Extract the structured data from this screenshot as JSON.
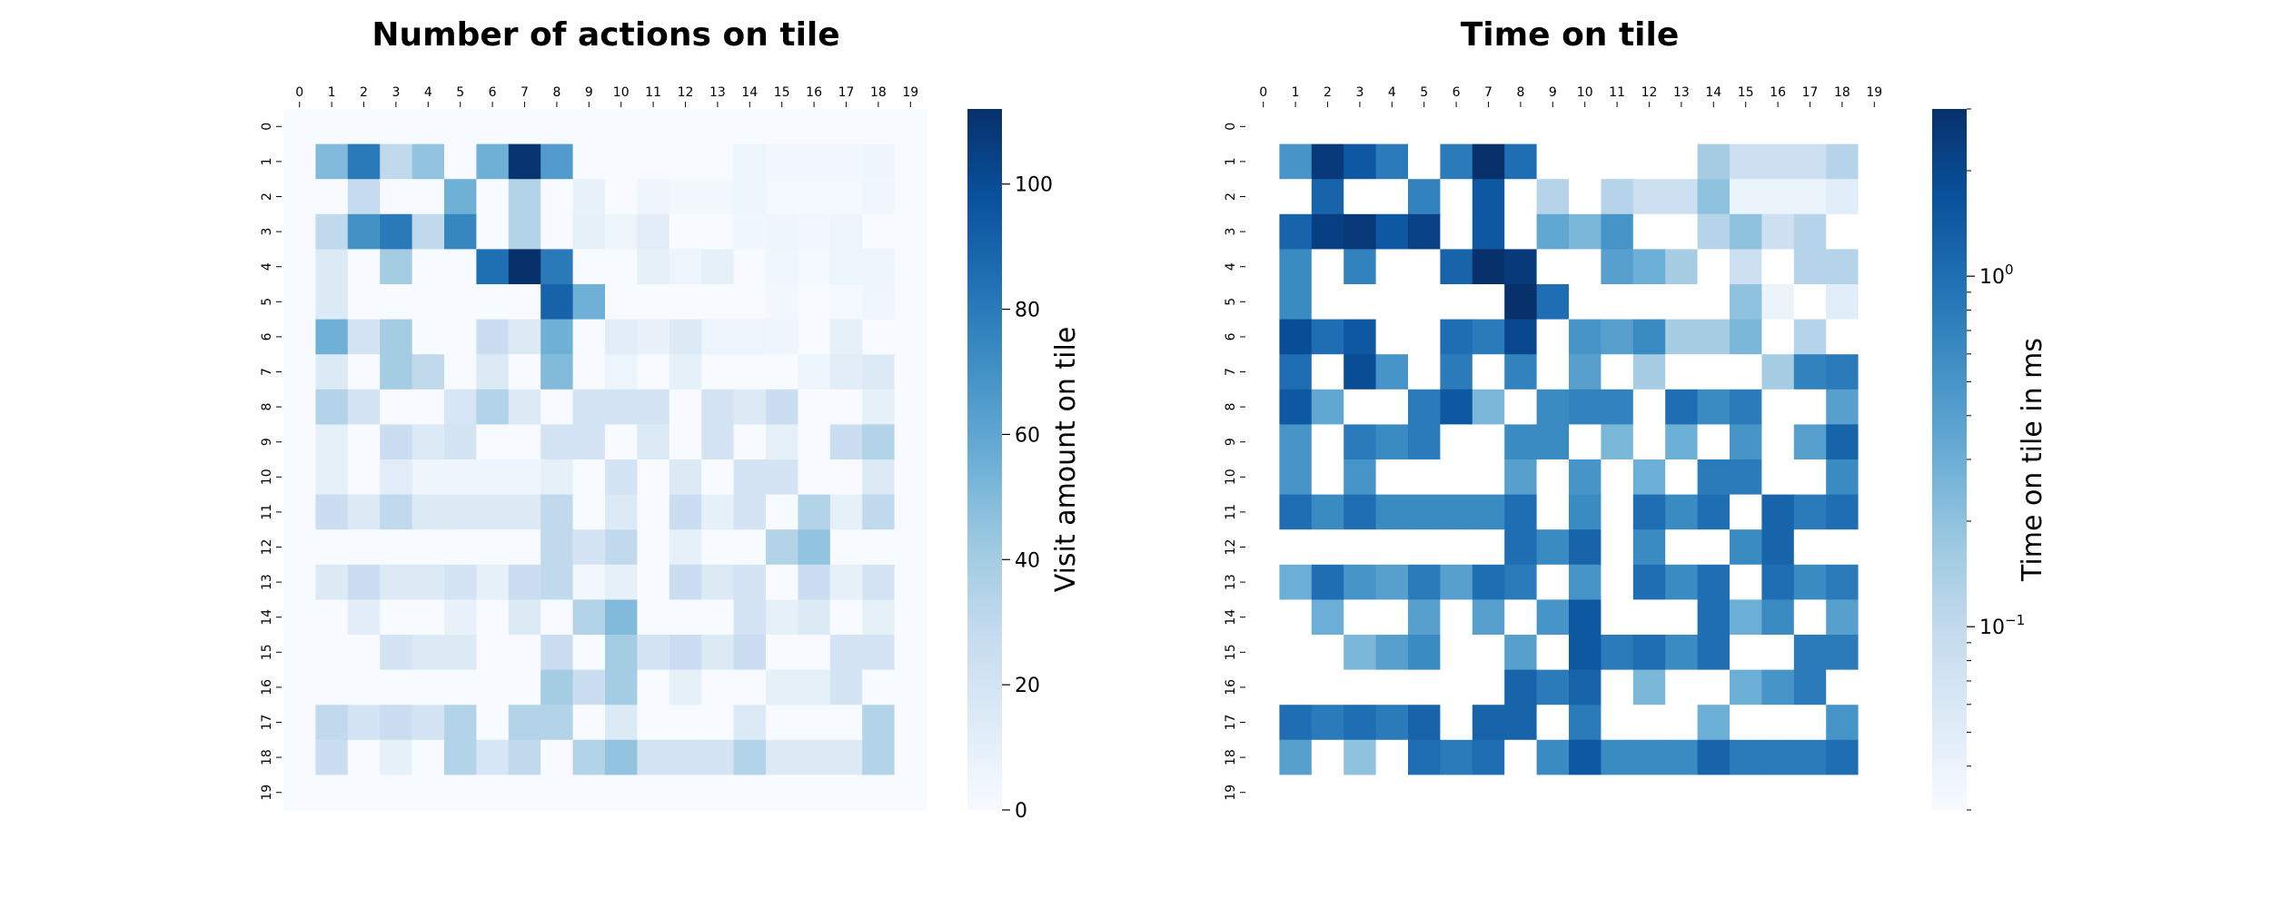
{
  "chart_data": [
    {
      "type": "heatmap",
      "title": "Number of actions on tile",
      "x_ticks": [
        "0",
        "1",
        "2",
        "3",
        "4",
        "5",
        "6",
        "7",
        "8",
        "9",
        "10",
        "11",
        "12",
        "13",
        "14",
        "15",
        "16",
        "17",
        "18",
        "19"
      ],
      "y_ticks": [
        "0",
        "1",
        "2",
        "3",
        "4",
        "5",
        "6",
        "7",
        "8",
        "9",
        "10",
        "11",
        "12",
        "13",
        "14",
        "15",
        "16",
        "17",
        "18",
        "19"
      ],
      "colorbar_label": "Visit amount on tile",
      "colorbar_scale": "linear",
      "colorbar_range": [
        0,
        112
      ],
      "colorbar_ticks": [
        "0",
        "20",
        "40",
        "60",
        "80",
        "100"
      ],
      "colorbar_tick_values": [
        0,
        20,
        40,
        60,
        80,
        100
      ],
      "colormap": "Blues",
      "values": [
        [
          0,
          0,
          0,
          0,
          0,
          0,
          0,
          0,
          0,
          0,
          0,
          0,
          0,
          0,
          0,
          0,
          0,
          0,
          0,
          0
        ],
        [
          0,
          50,
          80,
          30,
          45,
          0,
          55,
          110,
          65,
          0,
          0,
          0,
          0,
          0,
          6,
          3,
          3,
          3,
          5,
          0
        ],
        [
          0,
          0,
          28,
          0,
          0,
          55,
          0,
          35,
          0,
          8,
          0,
          5,
          3,
          3,
          6,
          2,
          2,
          2,
          4,
          0
        ],
        [
          0,
          30,
          70,
          80,
          30,
          75,
          0,
          35,
          0,
          10,
          6,
          12,
          0,
          0,
          4,
          5,
          3,
          6,
          0,
          0
        ],
        [
          0,
          15,
          0,
          40,
          0,
          0,
          85,
          112,
          80,
          0,
          0,
          10,
          6,
          10,
          0,
          4,
          2,
          6,
          6,
          0
        ],
        [
          0,
          15,
          0,
          0,
          0,
          0,
          0,
          0,
          90,
          55,
          0,
          0,
          0,
          0,
          0,
          3,
          0,
          2,
          4,
          0
        ],
        [
          0,
          55,
          20,
          40,
          0,
          0,
          25,
          15,
          55,
          0,
          12,
          8,
          15,
          6,
          6,
          5,
          0,
          10,
          0,
          0
        ],
        [
          0,
          15,
          0,
          40,
          30,
          0,
          15,
          0,
          50,
          0,
          6,
          0,
          10,
          0,
          0,
          0,
          6,
          12,
          15,
          0
        ],
        [
          0,
          35,
          20,
          0,
          0,
          18,
          35,
          15,
          0,
          20,
          20,
          20,
          0,
          20,
          15,
          25,
          0,
          0,
          10,
          0
        ],
        [
          0,
          10,
          0,
          25,
          15,
          20,
          0,
          0,
          20,
          20,
          0,
          15,
          0,
          20,
          0,
          10,
          0,
          25,
          35,
          0
        ],
        [
          0,
          10,
          0,
          12,
          5,
          5,
          5,
          5,
          10,
          0,
          20,
          0,
          15,
          0,
          20,
          20,
          0,
          0,
          15,
          0
        ],
        [
          0,
          25,
          15,
          30,
          15,
          15,
          15,
          15,
          30,
          0,
          15,
          0,
          25,
          10,
          20,
          0,
          35,
          10,
          30,
          0
        ],
        [
          0,
          0,
          0,
          0,
          0,
          0,
          0,
          0,
          30,
          20,
          30,
          0,
          10,
          0,
          0,
          35,
          45,
          0,
          0,
          0
        ],
        [
          0,
          15,
          25,
          15,
          15,
          20,
          10,
          25,
          30,
          3,
          10,
          0,
          25,
          15,
          20,
          0,
          25,
          10,
          20,
          0
        ],
        [
          0,
          0,
          12,
          0,
          0,
          8,
          0,
          15,
          0,
          35,
          50,
          0,
          0,
          0,
          20,
          10,
          15,
          0,
          10,
          0
        ],
        [
          0,
          0,
          0,
          20,
          15,
          15,
          0,
          0,
          25,
          0,
          40,
          20,
          25,
          15,
          25,
          0,
          0,
          20,
          20,
          0
        ],
        [
          0,
          0,
          0,
          0,
          0,
          0,
          0,
          0,
          40,
          25,
          40,
          0,
          10,
          0,
          0,
          10,
          10,
          20,
          0,
          0
        ],
        [
          0,
          30,
          20,
          25,
          20,
          35,
          0,
          35,
          35,
          0,
          15,
          0,
          0,
          0,
          15,
          0,
          0,
          0,
          35,
          0
        ],
        [
          0,
          25,
          0,
          10,
          0,
          35,
          18,
          30,
          0,
          35,
          45,
          20,
          20,
          20,
          35,
          15,
          15,
          15,
          35,
          0
        ],
        [
          0,
          0,
          0,
          0,
          0,
          0,
          0,
          0,
          0,
          0,
          0,
          0,
          0,
          0,
          0,
          0,
          0,
          0,
          0,
          0
        ]
      ]
    },
    {
      "type": "heatmap",
      "title": "Time on tile",
      "x_ticks": [
        "0",
        "1",
        "2",
        "3",
        "4",
        "5",
        "6",
        "7",
        "8",
        "9",
        "10",
        "11",
        "12",
        "13",
        "14",
        "15",
        "16",
        "17",
        "18",
        "19"
      ],
      "y_ticks": [
        "0",
        "1",
        "2",
        "3",
        "4",
        "5",
        "6",
        "7",
        "8",
        "9",
        "10",
        "11",
        "12",
        "13",
        "14",
        "15",
        "16",
        "17",
        "18",
        "19"
      ],
      "colorbar_label": "Time on tile in ms",
      "colorbar_scale": "log",
      "colorbar_range": [
        0.03,
        3
      ],
      "colorbar_ticks": [
        "10^-1",
        "10^0"
      ],
      "colorbar_tick_values": [
        0.1,
        1
      ],
      "colormap": "Blues",
      "missing": "white",
      "values": [
        [
          null,
          null,
          null,
          null,
          null,
          null,
          null,
          null,
          null,
          null,
          null,
          null,
          null,
          null,
          null,
          null,
          null,
          null,
          null,
          null
        ],
        [
          null,
          0.5,
          2.5,
          1.5,
          0.8,
          null,
          0.8,
          3.0,
          1.0,
          null,
          null,
          null,
          null,
          null,
          0.15,
          0.08,
          0.08,
          0.08,
          0.12,
          null
        ],
        [
          null,
          null,
          1.2,
          null,
          null,
          0.7,
          null,
          1.5,
          null,
          0.12,
          null,
          0.12,
          0.08,
          0.08,
          0.2,
          0.04,
          0.04,
          0.04,
          0.05,
          null
        ],
        [
          null,
          1.2,
          2.3,
          2.6,
          1.5,
          2.2,
          null,
          1.5,
          null,
          0.35,
          0.25,
          0.5,
          null,
          null,
          0.12,
          0.2,
          0.08,
          0.12,
          null,
          null
        ],
        [
          null,
          0.6,
          null,
          0.7,
          null,
          null,
          1.2,
          3.0,
          2.5,
          null,
          null,
          0.4,
          0.3,
          0.15,
          null,
          0.08,
          null,
          0.12,
          0.12,
          null
        ],
        [
          null,
          0.6,
          null,
          null,
          null,
          null,
          null,
          null,
          3.0,
          1.0,
          null,
          null,
          null,
          null,
          null,
          0.2,
          0.04,
          null,
          0.05,
          null
        ],
        [
          null,
          1.8,
          1.0,
          1.5,
          null,
          null,
          1.0,
          0.8,
          2.0,
          null,
          0.5,
          0.4,
          0.6,
          0.15,
          0.15,
          0.25,
          null,
          0.12,
          null,
          null
        ],
        [
          null,
          1.0,
          null,
          1.8,
          0.5,
          null,
          0.8,
          null,
          0.7,
          null,
          0.4,
          null,
          0.15,
          null,
          null,
          null,
          0.15,
          0.7,
          0.8,
          null
        ],
        [
          null,
          1.5,
          0.35,
          null,
          null,
          0.8,
          1.5,
          0.25,
          null,
          0.6,
          0.7,
          0.7,
          null,
          1.0,
          0.6,
          0.8,
          null,
          null,
          0.4,
          null
        ],
        [
          null,
          0.5,
          null,
          0.8,
          0.6,
          0.8,
          null,
          null,
          0.6,
          0.6,
          null,
          0.25,
          null,
          0.3,
          null,
          0.5,
          null,
          0.4,
          1.2,
          null
        ],
        [
          null,
          0.5,
          null,
          0.5,
          null,
          null,
          null,
          null,
          0.4,
          null,
          0.5,
          null,
          0.3,
          null,
          0.8,
          0.8,
          null,
          null,
          0.6,
          null
        ],
        [
          null,
          1.0,
          0.6,
          1.0,
          0.6,
          0.6,
          0.6,
          0.6,
          1.0,
          null,
          0.6,
          null,
          1.0,
          0.6,
          1.0,
          null,
          1.2,
          0.8,
          1.0,
          null
        ],
        [
          null,
          null,
          null,
          null,
          null,
          null,
          null,
          null,
          1.0,
          0.6,
          1.2,
          null,
          0.6,
          null,
          null,
          0.6,
          1.2,
          null,
          null,
          null
        ],
        [
          null,
          0.3,
          1.0,
          0.5,
          0.4,
          0.8,
          0.4,
          1.0,
          0.8,
          null,
          0.5,
          null,
          1.0,
          0.6,
          1.0,
          null,
          1.0,
          0.6,
          0.8,
          null
        ],
        [
          null,
          null,
          0.3,
          null,
          null,
          0.4,
          null,
          0.4,
          null,
          0.5,
          1.5,
          null,
          null,
          null,
          1.0,
          0.3,
          0.6,
          null,
          0.4,
          null
        ],
        [
          null,
          null,
          null,
          0.25,
          0.4,
          0.6,
          null,
          null,
          0.4,
          null,
          1.5,
          0.8,
          1.0,
          0.6,
          1.0,
          null,
          null,
          0.8,
          0.8,
          null
        ],
        [
          null,
          null,
          null,
          null,
          null,
          null,
          null,
          null,
          1.2,
          0.8,
          1.2,
          null,
          0.25,
          null,
          null,
          0.3,
          0.5,
          0.8,
          null,
          null
        ],
        [
          null,
          1.0,
          0.8,
          1.0,
          0.8,
          1.2,
          null,
          1.2,
          1.2,
          null,
          0.8,
          null,
          null,
          null,
          0.3,
          null,
          null,
          null,
          0.5,
          null
        ],
        [
          null,
          0.4,
          null,
          0.2,
          null,
          1.0,
          0.8,
          1.0,
          null,
          0.6,
          1.5,
          0.6,
          0.6,
          0.6,
          1.2,
          0.8,
          0.8,
          0.8,
          1.0,
          null
        ],
        [
          null,
          null,
          null,
          null,
          null,
          null,
          null,
          null,
          null,
          null,
          null,
          null,
          null,
          null,
          null,
          null,
          null,
          null,
          null,
          null
        ]
      ]
    }
  ]
}
